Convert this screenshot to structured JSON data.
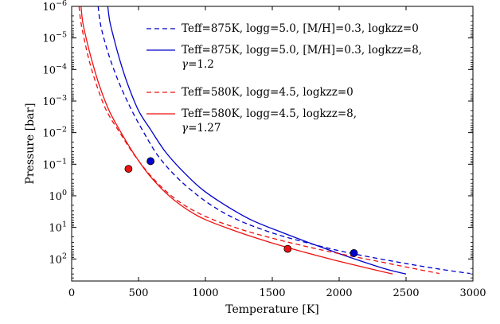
{
  "chart_data": {
    "type": "line",
    "title": "",
    "xlabel": "Temperature [K]",
    "ylabel": "Pressure [bar]",
    "xlim": [
      0,
      3000
    ],
    "ylim": [
      1e-06,
      500
    ],
    "yscale": "log",
    "y_inverted": true,
    "grid": false,
    "legend_position": "top-right",
    "x_ticks": [
      0,
      500,
      1000,
      1500,
      2000,
      2500,
      3000
    ],
    "x_tick_labels": [
      "0",
      "500",
      "1000",
      "1500",
      "2000",
      "2500",
      "3000"
    ],
    "y_ticks": [
      1e-06,
      1e-05,
      0.0001,
      0.001,
      0.01,
      0.1,
      1,
      10,
      100
    ],
    "y_tick_labels": [
      {
        "base": "10",
        "exp": "−6"
      },
      {
        "base": "10",
        "exp": "−5"
      },
      {
        "base": "10",
        "exp": "−4"
      },
      {
        "base": "10",
        "exp": "−3"
      },
      {
        "base": "10",
        "exp": "−2"
      },
      {
        "base": "10",
        "exp": "−1"
      },
      {
        "base": "10",
        "exp": "0"
      },
      {
        "base": "10",
        "exp": "1"
      },
      {
        "base": "10",
        "exp": "2"
      }
    ],
    "series": [
      {
        "name": "Teff=875K, logg=5.0, [M/H]=0.3, logkzz=0",
        "legend_lines": [
          "Teff=875K, logg=5.0, [M/H]=0.3, logkzz=0"
        ],
        "color": "#0000cc",
        "style": "dashed",
        "x": [
          198,
          212,
          240,
          290,
          360,
          450,
          540,
          640,
          760,
          900,
          1060,
          1250,
          1500,
          1750,
          2000,
          2250,
          2500,
          2750,
          2980
        ],
        "y": [
          1e-06,
          3e-06,
          1e-05,
          5e-05,
          0.0003,
          0.002,
          0.01,
          0.05,
          0.2,
          0.7,
          2.2,
          6,
          15,
          30,
          55,
          90,
          140,
          210,
          290
        ]
      },
      {
        "name": "Teff=875K, logg=5.0, [M/H]=0.3, logkzz=8, γ=1.2",
        "legend_lines": [
          "Teff=875K, logg=5.0, [M/H]=0.3, logkzz=8,",
          "γ=1.2"
        ],
        "color": "#0000cc",
        "style": "solid",
        "x": [
          270,
          285,
          315,
          360,
          420,
          500,
          590,
          700,
          820,
          970,
          1150,
          1350,
          1600,
          1850,
          2100,
          2350,
          2500
        ],
        "y": [
          1e-06,
          3e-06,
          1e-05,
          5e-05,
          0.0003,
          0.002,
          0.008,
          0.04,
          0.15,
          0.6,
          2,
          6,
          16,
          40,
          95,
          210,
          300
        ]
      },
      {
        "name": "Teff=580K, logg=4.5, logkzz=0",
        "legend_lines": [
          "Teff=580K, logg=4.5, logkzz=0"
        ],
        "color": "#ee1111",
        "style": "dashed",
        "x": [
          55,
          68,
          92,
          130,
          185,
          260,
          360,
          480,
          630,
          800,
          1000,
          1250,
          1500,
          1750,
          2000,
          2250,
          2500,
          2750
        ],
        "y": [
          1e-06,
          3e-06,
          1e-05,
          5e-05,
          0.0003,
          0.002,
          0.01,
          0.06,
          0.35,
          1.5,
          4.5,
          11,
          22,
          40,
          68,
          110,
          180,
          290
        ]
      },
      {
        "name": "Teff=580K, logg=4.5, logkzz=8, γ=1.27",
        "legend_lines": [
          "Teff=580K, logg=4.5, logkzz=8,",
          "γ=1.27"
        ],
        "color": "#ee1111",
        "style": "solid",
        "x": [
          70,
          82,
          108,
          150,
          205,
          280,
          370,
          470,
          590,
          750,
          950,
          1200,
          1450,
          1700,
          1950,
          2200,
          2400
        ],
        "y": [
          1e-06,
          3e-06,
          1e-05,
          5e-05,
          0.0003,
          0.002,
          0.01,
          0.05,
          0.25,
          1.2,
          4.5,
          12,
          27,
          55,
          105,
          190,
          300
        ]
      }
    ],
    "markers": [
      {
        "x": 590,
        "y": 0.08,
        "color": "#0000cc"
      },
      {
        "x": 2110,
        "y": 65,
        "color": "#0000cc"
      },
      {
        "x": 425,
        "y": 0.14,
        "color": "#ee1111"
      },
      {
        "x": 1615,
        "y": 48,
        "color": "#ee1111"
      }
    ]
  }
}
